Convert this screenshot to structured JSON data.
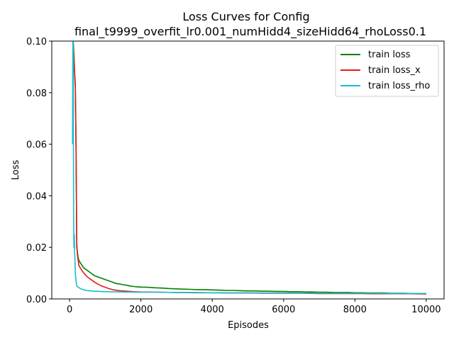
{
  "chart_data": {
    "type": "line",
    "title": "Loss Curves for Config",
    "subtitle": "final_t9999_overfit_lr0.001_numHidd4_sizeHidd64_rhoLoss0.1",
    "xlabel": "Episodes",
    "ylabel": "Loss",
    "xlim": [
      -500,
      10500
    ],
    "ylim": [
      0.0,
      0.1
    ],
    "xticks": [
      0,
      2000,
      4000,
      6000,
      8000,
      10000
    ],
    "xtick_labels": [
      "0",
      "2000",
      "4000",
      "6000",
      "8000",
      "10000"
    ],
    "yticks": [
      0.0,
      0.02,
      0.04,
      0.06,
      0.08,
      0.1
    ],
    "ytick_labels": [
      "0.00",
      "0.02",
      "0.04",
      "0.06",
      "0.08",
      "0.10"
    ],
    "grid": false,
    "legend_position": "top-right",
    "series": [
      {
        "name": "train loss",
        "color": "#008000",
        "x": [
          100,
          120,
          140,
          160,
          180,
          200,
          220,
          240,
          260,
          300,
          350,
          400,
          500,
          600,
          700,
          800,
          900,
          1000,
          1100,
          1200,
          1300,
          1400,
          1500,
          1600,
          1700,
          1800,
          1900,
          2000,
          2200,
          2400,
          2600,
          2800,
          3000,
          3200,
          3400,
          3600,
          3800,
          4000,
          4200,
          4400,
          4600,
          4800,
          5000,
          5200,
          5400,
          5600,
          5800,
          6000,
          6200,
          6400,
          6600,
          6800,
          7000,
          7200,
          7400,
          7600,
          7800,
          8000,
          8200,
          8400,
          8600,
          8800,
          9000,
          9200,
          9400,
          9600,
          9800,
          10000
        ],
        "values": [
          0.1,
          0.095,
          0.088,
          0.083,
          0.06,
          0.02,
          0.018,
          0.016,
          0.015,
          0.014,
          0.013,
          0.012,
          0.011,
          0.01,
          0.009,
          0.0085,
          0.008,
          0.0075,
          0.007,
          0.0065,
          0.006,
          0.0058,
          0.0055,
          0.0053,
          0.005,
          0.0048,
          0.0047,
          0.0046,
          0.0045,
          0.0043,
          0.0042,
          0.004,
          0.0039,
          0.0038,
          0.0037,
          0.0036,
          0.0036,
          0.0035,
          0.0034,
          0.0033,
          0.0033,
          0.0032,
          0.0031,
          0.0031,
          0.003,
          0.003,
          0.0029,
          0.0029,
          0.0028,
          0.0028,
          0.0027,
          0.0027,
          0.0026,
          0.0026,
          0.0025,
          0.0025,
          0.0025,
          0.0024,
          0.0024,
          0.0023,
          0.0023,
          0.0023,
          0.0022,
          0.0022,
          0.0022,
          0.0021,
          0.0021,
          0.002
        ]
      },
      {
        "name": "train loss_x",
        "color": "#e41a1c",
        "x": [
          100,
          120,
          140,
          160,
          180,
          200,
          220,
          240,
          260,
          300,
          350,
          400,
          500,
          600,
          700,
          800,
          900,
          1000,
          1100,
          1200,
          1400,
          1600,
          1800,
          2000,
          2500,
          3000,
          3500,
          4000,
          4500,
          5000,
          5500,
          6000,
          6500,
          7000,
          7500,
          8000,
          8500,
          9000,
          9500,
          10000
        ],
        "values": [
          0.1,
          0.093,
          0.087,
          0.082,
          0.058,
          0.022,
          0.017,
          0.015,
          0.013,
          0.012,
          0.011,
          0.01,
          0.0085,
          0.0075,
          0.0065,
          0.0057,
          0.005,
          0.0045,
          0.004,
          0.0036,
          0.0032,
          0.003,
          0.0028,
          0.0027,
          0.0026,
          0.0025,
          0.0024,
          0.0024,
          0.0023,
          0.0023,
          0.0022,
          0.0022,
          0.0022,
          0.0021,
          0.0021,
          0.0021,
          0.002,
          0.002,
          0.002,
          0.0019
        ]
      },
      {
        "name": "train loss_rho",
        "color": "#17becf",
        "x": [
          80,
          90,
          100,
          110,
          120,
          130,
          140,
          150,
          160,
          180,
          200,
          250,
          300,
          400,
          500,
          700,
          1000,
          1500,
          2000,
          2500,
          3000,
          3500,
          4000,
          4500,
          5000,
          5500,
          6000,
          6500,
          7000,
          7500,
          8000,
          8500,
          9000,
          9500,
          10000
        ],
        "values": [
          0.06,
          0.1,
          0.1,
          0.035,
          0.02,
          0.025,
          0.018,
          0.015,
          0.01,
          0.007,
          0.005,
          0.0045,
          0.004,
          0.0035,
          0.0032,
          0.003,
          0.0028,
          0.0027,
          0.0026,
          0.0026,
          0.0025,
          0.0025,
          0.0024,
          0.0024,
          0.0024,
          0.0023,
          0.0023,
          0.0023,
          0.0022,
          0.0022,
          0.0022,
          0.0022,
          0.0021,
          0.0021,
          0.0021
        ]
      }
    ]
  }
}
